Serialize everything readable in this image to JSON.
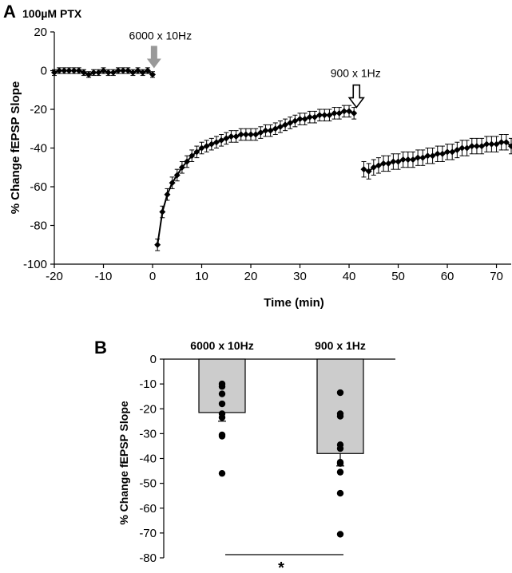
{
  "chart_data": [
    {
      "panel_label": "A",
      "type": "line",
      "title": "100µM PTX",
      "xlabel": "Time (min)",
      "ylabel": "% Change fEPSP Slope",
      "xlim": [
        -20,
        73
      ],
      "ylim": [
        -100,
        20
      ],
      "xticks": [
        -20,
        -10,
        0,
        10,
        20,
        30,
        40,
        50,
        60,
        70
      ],
      "yticks": [
        20,
        0,
        -20,
        -40,
        -60,
        -80,
        -100
      ],
      "annotations": [
        {
          "text": "6000 x 10Hz",
          "x": 0.3,
          "y": 0,
          "arrow": "filled-gray"
        },
        {
          "text": "900 x 1Hz",
          "x": 41.5,
          "y": -19,
          "arrow": "open"
        }
      ],
      "series": [
        {
          "segment": "baseline",
          "points": [
            [
              -20,
              -1
            ],
            [
              -19,
              0
            ],
            [
              -18,
              0
            ],
            [
              -17,
              0
            ],
            [
              -16,
              0
            ],
            [
              -15,
              0
            ],
            [
              -14,
              -1
            ],
            [
              -13,
              -2
            ],
            [
              -12,
              -1
            ],
            [
              -11,
              -1
            ],
            [
              -10,
              0
            ],
            [
              -9,
              -1
            ],
            [
              -8,
              -1
            ],
            [
              -7,
              0
            ],
            [
              -6,
              0
            ],
            [
              -5,
              0
            ],
            [
              -4,
              -1
            ],
            [
              -3,
              0
            ],
            [
              -2,
              -1
            ],
            [
              -1,
              0
            ],
            [
              0,
              -2
            ]
          ],
          "error": 1.5
        },
        {
          "segment": "post-6000x10Hz",
          "points": [
            [
              1,
              -90
            ],
            [
              2,
              -73
            ],
            [
              3,
              -64
            ],
            [
              4,
              -58
            ],
            [
              5,
              -54
            ],
            [
              6,
              -50
            ],
            [
              7,
              -47
            ],
            [
              8,
              -44
            ],
            [
              9,
              -42
            ],
            [
              10,
              -40
            ],
            [
              11,
              -39
            ],
            [
              12,
              -38
            ],
            [
              13,
              -37
            ],
            [
              14,
              -36
            ],
            [
              15,
              -35
            ],
            [
              16,
              -34
            ],
            [
              17,
              -34
            ],
            [
              18,
              -33
            ],
            [
              19,
              -33
            ],
            [
              20,
              -33
            ],
            [
              21,
              -33
            ],
            [
              22,
              -32
            ],
            [
              23,
              -31
            ],
            [
              24,
              -31
            ],
            [
              25,
              -30
            ],
            [
              26,
              -29
            ],
            [
              27,
              -28
            ],
            [
              28,
              -27
            ],
            [
              29,
              -26
            ],
            [
              30,
              -25
            ],
            [
              31,
              -25
            ],
            [
              32,
              -24
            ],
            [
              33,
              -24
            ],
            [
              34,
              -23
            ],
            [
              35,
              -23
            ],
            [
              36,
              -23
            ],
            [
              37,
              -22
            ],
            [
              38,
              -22
            ],
            [
              39,
              -21
            ],
            [
              40,
              -21
            ],
            [
              41,
              -22
            ]
          ],
          "error": 3
        },
        {
          "segment": "post-900x1Hz",
          "points": [
            [
              43,
              -51
            ],
            [
              44,
              -52
            ],
            [
              45,
              -50
            ],
            [
              46,
              -49
            ],
            [
              47,
              -48
            ],
            [
              48,
              -48
            ],
            [
              49,
              -47
            ],
            [
              50,
              -47
            ],
            [
              51,
              -46
            ],
            [
              52,
              -46
            ],
            [
              53,
              -46
            ],
            [
              54,
              -45
            ],
            [
              55,
              -45
            ],
            [
              56,
              -44
            ],
            [
              57,
              -44
            ],
            [
              58,
              -43
            ],
            [
              59,
              -43
            ],
            [
              60,
              -42
            ],
            [
              61,
              -42
            ],
            [
              62,
              -41
            ],
            [
              63,
              -40
            ],
            [
              64,
              -40
            ],
            [
              65,
              -39
            ],
            [
              66,
              -39
            ],
            [
              67,
              -39
            ],
            [
              68,
              -38
            ],
            [
              69,
              -38
            ],
            [
              70,
              -38
            ],
            [
              71,
              -37
            ],
            [
              72,
              -37
            ],
            [
              73,
              -39
            ]
          ],
          "error": 4
        }
      ]
    },
    {
      "panel_label": "B",
      "type": "bar",
      "ylabel": "% Change fEPSP Slope",
      "ylim": [
        -80,
        0
      ],
      "yticks": [
        0,
        -10,
        -20,
        -30,
        -40,
        -50,
        -60,
        -70,
        -80
      ],
      "categories": [
        "6000 x 10Hz",
        "900 x 1Hz"
      ],
      "values": [
        -21.5,
        -38
      ],
      "errors": [
        3.5,
        5
      ],
      "bar_color": "#cccccc",
      "points": [
        [
          -10,
          -11,
          -14,
          -18,
          -22,
          -23.5,
          -30.5,
          -31,
          -46
        ],
        [
          -13.5,
          -22,
          -23,
          -34.5,
          -36,
          -41.5,
          -42,
          -45.5,
          -54,
          -70.5
        ]
      ],
      "significance": "*"
    }
  ]
}
